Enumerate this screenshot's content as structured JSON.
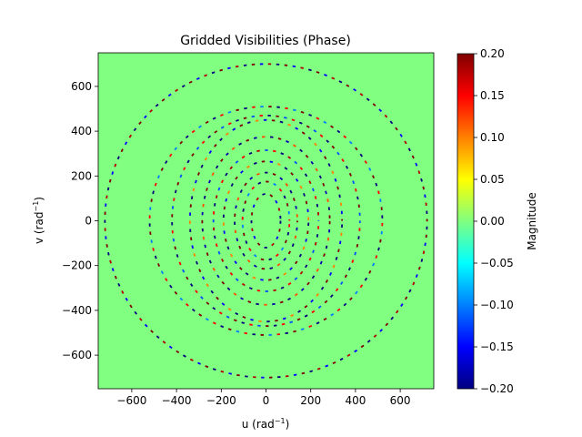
{
  "chart_data": {
    "type": "heatmap",
    "title": "Gridded Visibilities (Phase)",
    "xlabel": "u (rad",
    "ylabel": "v (rad",
    "label_exponent": "−1",
    "xlim": [
      -750,
      750
    ],
    "ylim": [
      -750,
      750
    ],
    "xticks": [
      -600,
      -400,
      -200,
      0,
      200,
      400,
      600
    ],
    "yticks": [
      -600,
      -400,
      -200,
      0,
      200,
      400,
      600
    ],
    "xtick_labels": [
      "−600",
      "−400",
      "−200",
      "0",
      "200",
      "400",
      "600"
    ],
    "ytick_labels": [
      "−600",
      "−400",
      "−200",
      "0",
      "200",
      "400",
      "600"
    ],
    "background_value": 0.0,
    "colorbar": {
      "label": "Magnitude",
      "colormap": "jet",
      "vmin": -0.2,
      "vmax": 0.2,
      "ticks": [
        -0.2,
        -0.15,
        -0.1,
        -0.05,
        0.0,
        0.05,
        0.1,
        0.15,
        0.2
      ],
      "tick_labels": [
        "−0.20",
        "−0.15",
        "−0.10",
        "−0.05",
        "0.00",
        "0.05",
        "0.10",
        "0.15",
        "0.20"
      ]
    },
    "rings": [
      {
        "a": 65,
        "b": 120,
        "values": [
          -0.2,
          0.2,
          -0.15,
          0.18
        ]
      },
      {
        "a": 105,
        "b": 175,
        "values": [
          0.15,
          -0.2,
          0.2,
          -0.1
        ]
      },
      {
        "a": 140,
        "b": 215,
        "values": [
          -0.18,
          0.12,
          -0.2,
          0.2
        ]
      },
      {
        "a": 190,
        "b": 265,
        "values": [
          0.2,
          -0.15,
          0.1,
          -0.2
        ]
      },
      {
        "a": 235,
        "b": 315,
        "values": [
          -0.2,
          0.18,
          -0.12,
          0.15
        ]
      },
      {
        "a": 285,
        "b": 375,
        "values": [
          0.12,
          -0.2,
          0.2,
          -0.18
        ]
      },
      {
        "a": 340,
        "b": 450,
        "values": [
          -0.15,
          0.2,
          -0.2,
          0.1
        ]
      },
      {
        "a": 420,
        "b": 470,
        "values": [
          0.2,
          -0.12,
          0.15,
          -0.2
        ]
      },
      {
        "a": 520,
        "b": 510,
        "values": [
          -0.2,
          0.15,
          -0.1,
          0.2
        ]
      },
      {
        "a": 720,
        "b": 700,
        "values": [
          0.18,
          -0.2,
          0.2,
          -0.15
        ]
      }
    ]
  },
  "colors": {
    "background": "#80ff80",
    "axis": "#000000"
  }
}
